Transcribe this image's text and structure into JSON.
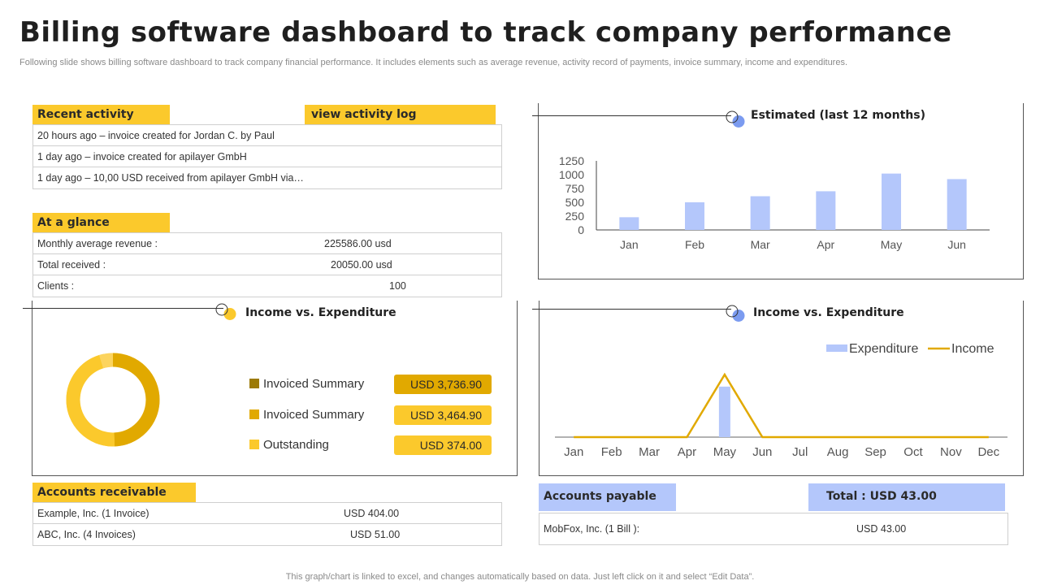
{
  "header": {
    "title": "Billing software dashboard to track company performance",
    "subtitle": "Following slide shows billing software dashboard to track company financial performance. It includes elements such as average revenue, activity record of payments, invoice summary, income and expenditures."
  },
  "recent_activity": {
    "label": "Recent activity",
    "link_label": "view activity log",
    "items": [
      "20 hours ago – invoice created for Jordan C. by Paul",
      "1 day ago – invoice created for apilayer GmbH",
      "1 day ago – 10,00 USD received from apilayer GmbH via…"
    ]
  },
  "at_a_glance": {
    "label": "At a glance",
    "rows": [
      {
        "label": "Monthly average  revenue  :",
        "value": "225586.00 usd"
      },
      {
        "label": "Total received  :",
        "value": "20050.00 usd"
      },
      {
        "label": "Clients :",
        "value": "100"
      }
    ]
  },
  "estimated_panel": {
    "title": "Estimated (last 12 months)"
  },
  "income_donut_panel": {
    "title": "Income vs. Expenditure",
    "legend": [
      {
        "label": "Invoiced Summary",
        "amount": "USD 3,736.90",
        "color": "#9c7a06",
        "pill": "#e1a900"
      },
      {
        "label": "Invoiced Summary",
        "amount": "USD 3,464.90",
        "color": "#e1a900",
        "pill": "#fbc92c"
      },
      {
        "label": "Outstanding",
        "amount": "USD 374.00",
        "color": "#fbc92c",
        "pill": "#fbc92c"
      }
    ]
  },
  "income_line_panel": {
    "title": "Income vs. Expenditure"
  },
  "chart_data": [
    {
      "type": "bar",
      "title": "Estimated (last 12 months)",
      "categories": [
        "Jan",
        "Feb",
        "Mar",
        "Apr",
        "May",
        "Jun"
      ],
      "values": [
        230,
        500,
        610,
        700,
        1020,
        920
      ],
      "yticks": [
        "0",
        "250",
        "500",
        "750",
        "1000",
        "1250"
      ],
      "ylim": [
        0,
        1250
      ],
      "color": "#b4c7fb"
    },
    {
      "type": "pie",
      "title": "Income vs. Expenditure",
      "labels": [
        "Invoiced Summary",
        "Invoiced Summary",
        "Outstanding"
      ],
      "values": [
        3736.9,
        3464.9,
        374.0
      ],
      "colors": [
        "#e1a900",
        "#fbc92c",
        "#fcd45e"
      ]
    },
    {
      "type": "line",
      "title": "Income vs. Expenditure",
      "categories": [
        "Jan",
        "Feb",
        "Mar",
        "Apr",
        "May",
        "Jun",
        "Jul",
        "Aug",
        "Sep",
        "Oct",
        "Nov",
        "Dec"
      ],
      "series": [
        {
          "name": "Expenditure",
          "kind": "bar",
          "color": "#b4c7fb",
          "values": [
            0,
            0,
            0,
            0,
            404,
            0,
            0,
            0,
            0,
            0,
            0,
            0
          ]
        },
        {
          "name": "Income",
          "kind": "line",
          "color": "#e1a900",
          "values": [
            0,
            0,
            0,
            0,
            500,
            0,
            0,
            0,
            0,
            0,
            0,
            0
          ]
        }
      ],
      "ylim": [
        0,
        520
      ],
      "legend_position": "top-right"
    }
  ],
  "accounts_receivable": {
    "label": "Accounts receivable",
    "rows": [
      {
        "name": "Example, Inc. (1 Invoice)",
        "amount": "USD 404.00"
      },
      {
        "name": "ABC, Inc. (4 Invoices)",
        "amount": "USD 51.00"
      }
    ]
  },
  "accounts_payable": {
    "label": "Accounts payable",
    "total_label": "Total : USD 43.00",
    "rows": [
      {
        "name": "MobFox, Inc. (1 Bill ):",
        "amount": "USD 43.00"
      }
    ]
  },
  "footnote": "This graph/chart is linked to excel,  and changes automatically based on data. Just left click on it and select “Edit Data”."
}
